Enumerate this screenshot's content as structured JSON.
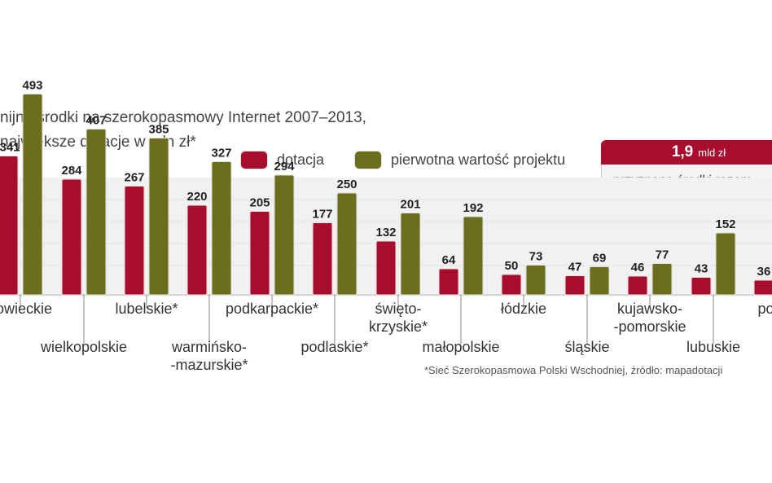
{
  "title": {
    "line1": "nijne środki na szerokopasmowy Internet 2007–2013,",
    "line2": "największe dotacje w mln zł*"
  },
  "legend": {
    "dotacja": "dotacja",
    "pierwotna": "pierwotna wartość projektu"
  },
  "total": {
    "value": "1,9",
    "unit": "mld zł",
    "label": "przyznane środki razem"
  },
  "footnote": "*Sieć Szerokopasmowa Polski Wschodniej, źródło: mapadotacji",
  "colors": {
    "dotacja": "#a80d2e",
    "pierwotna": "#6b6f1d",
    "panel": "#f1f1f1",
    "gridline": "#cfcfcf"
  },
  "chart_data": {
    "type": "bar",
    "categories": [
      "zowieckie",
      "wielkopolskie",
      "lubelskie*",
      "warmińsko-\n-mazurskie*",
      "podkarpackie*",
      "podlaskie*",
      "świętokrzyskie*",
      "małopolskie",
      "łódzkie",
      "śląskie",
      "kujawsko-pomorskie",
      "lubuskie",
      "pomo"
    ],
    "label_lines": [
      [
        "zowieckie"
      ],
      [
        "wielkopolskie"
      ],
      [
        "lubelskie*"
      ],
      [
        "warmińsko-",
        "-mazurskie*"
      ],
      [
        "podkarpackie*"
      ],
      [
        "podlaskie*"
      ],
      [
        "świętо-",
        "krzyskie*"
      ],
      [
        "małopolskie"
      ],
      [
        "łódzkie"
      ],
      [
        "śląskie"
      ],
      [
        "kujawsko-",
        "-pomorskie"
      ],
      [
        "lubuskie"
      ],
      [
        "pomo"
      ]
    ],
    "series": [
      {
        "name": "dotacja",
        "values": [
          341,
          284,
          267,
          220,
          205,
          177,
          132,
          64,
          50,
          47,
          46,
          43,
          36
        ]
      },
      {
        "name": "pierwotna wartość projektu",
        "values": [
          493,
          407,
          385,
          327,
          294,
          250,
          201,
          192,
          73,
          69,
          77,
          152,
          null
        ]
      }
    ],
    "ylim": [
      0,
      500
    ]
  }
}
